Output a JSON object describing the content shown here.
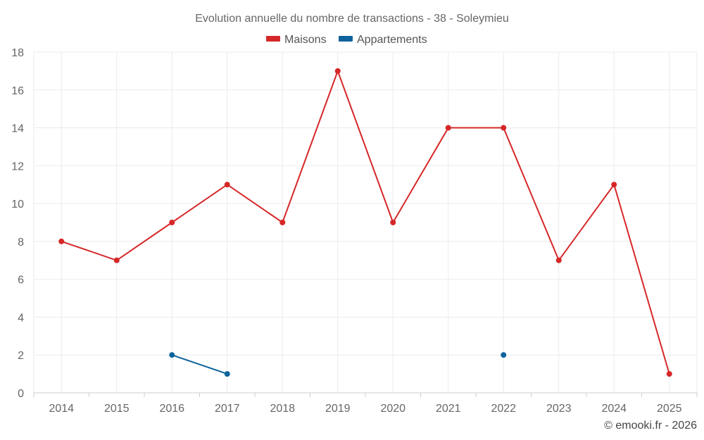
{
  "chart_data": {
    "type": "line",
    "title": "Evolution annuelle du nombre de transactions - 38 - Soleymieu",
    "categories": [
      "2014",
      "2015",
      "2016",
      "2017",
      "2018",
      "2019",
      "2020",
      "2021",
      "2022",
      "2023",
      "2024",
      "2025"
    ],
    "series": [
      {
        "name": "Maisons",
        "color": "#d62728",
        "values": [
          8,
          7,
          9,
          11,
          9,
          17,
          9,
          14,
          14,
          7,
          11,
          1
        ]
      },
      {
        "name": "Appartements",
        "color": "#0e639c",
        "values": [
          null,
          null,
          2,
          1,
          null,
          null,
          null,
          null,
          2,
          null,
          null,
          null
        ]
      }
    ],
    "yticks": [
      0,
      2,
      4,
      6,
      8,
      10,
      12,
      14,
      16,
      18
    ],
    "ylim": [
      0,
      18
    ],
    "xlabel": "",
    "ylabel": "",
    "grid": true,
    "legend_position": "top-center"
  },
  "credit": "© emooki.fr - 2026"
}
